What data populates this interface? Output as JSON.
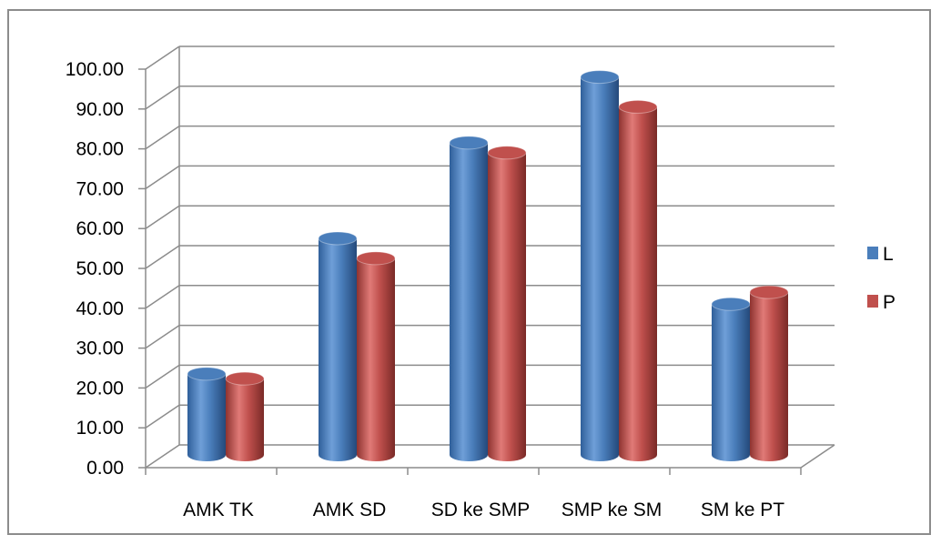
{
  "chart_data": {
    "type": "bar",
    "style": "3d-cylinder",
    "categories": [
      "AMK TK",
      "AMK SD",
      "SD ke SMP",
      "SMP ke SM",
      "SM ke PT"
    ],
    "series": [
      {
        "name": "L",
        "color": "#4a7ebb",
        "values": [
          24.0,
          58.0,
          82.0,
          98.5,
          41.5
        ]
      },
      {
        "name": "P",
        "color": "#c0504d",
        "values": [
          22.8,
          53.0,
          79.5,
          91.0,
          44.5
        ]
      }
    ],
    "yticks": [
      "0.00",
      "10.00",
      "20.00",
      "30.00",
      "40.00",
      "50.00",
      "60.00",
      "70.00",
      "80.00",
      "90.00",
      "100.00"
    ],
    "ylim": [
      0,
      100
    ],
    "grid": true,
    "legend_position": "right",
    "title": "",
    "xlabel": "",
    "ylabel": ""
  }
}
